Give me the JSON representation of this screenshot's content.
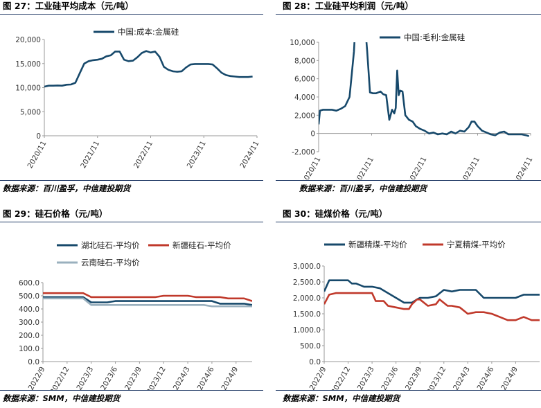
{
  "panels": [
    {
      "title": "图 27：工业硅平均成本（元/吨）",
      "source": "数据来源：百川盈孚，中信建投期货"
    },
    {
      "title": "图 28：工业硅平均利润（元/吨）",
      "source": "数据来源：百川盈孚，中信建投期货"
    },
    {
      "title": "图 29：硅石价格（元/吨）",
      "source": "数据来源：SMM，中信建投期货"
    },
    {
      "title": "图 30：硅煤价格（元/吨）",
      "source": "数据来源：SMM，中信建投期货"
    }
  ],
  "chart_data": [
    {
      "type": "line",
      "title": "图 27：工业硅平均成本（元/吨）",
      "ylim": [
        0,
        20000
      ],
      "yticks": [
        "0",
        "5,000",
        "10,000",
        "15,000",
        "20,000"
      ],
      "ytick_values": [
        0,
        5000,
        10000,
        15000,
        20000
      ],
      "xlim": [
        "2020-11",
        "2024-11"
      ],
      "xticks": [
        "2020/11",
        "2021/11",
        "2022/11",
        "2023/11",
        "2024/11"
      ],
      "grid": false,
      "legend": "top-center",
      "series": [
        {
          "name": "中国:成本:金属硅",
          "color": "#17496b",
          "points": [
            [
              "2020-11",
              10200
            ],
            [
              "2020-12",
              10400
            ],
            [
              "2021-01",
              10400
            ],
            [
              "2021-02",
              10450
            ],
            [
              "2021-03",
              10400
            ],
            [
              "2021-04",
              10600
            ],
            [
              "2021-05",
              10650
            ],
            [
              "2021-06",
              11000
            ],
            [
              "2021-07",
              13000
            ],
            [
              "2021-08",
              15000
            ],
            [
              "2021-09",
              15500
            ],
            [
              "2021-10",
              15700
            ],
            [
              "2021-11",
              15800
            ],
            [
              "2021-12",
              16000
            ],
            [
              "2022-01",
              16500
            ],
            [
              "2022-02",
              16700
            ],
            [
              "2022-03",
              17500
            ],
            [
              "2022-04",
              17500
            ],
            [
              "2022-05",
              15800
            ],
            [
              "2022-06",
              15500
            ],
            [
              "2022-07",
              15600
            ],
            [
              "2022-08",
              16300
            ],
            [
              "2022-09",
              17200
            ],
            [
              "2022-10",
              17600
            ],
            [
              "2022-11",
              17300
            ],
            [
              "2022-12",
              17500
            ],
            [
              "2023-01",
              16400
            ],
            [
              "2023-02",
              14300
            ],
            [
              "2023-03",
              13700
            ],
            [
              "2023-04",
              13400
            ],
            [
              "2023-05",
              13300
            ],
            [
              "2023-06",
              13400
            ],
            [
              "2023-07",
              14200
            ],
            [
              "2023-08",
              14800
            ],
            [
              "2023-09",
              14900
            ],
            [
              "2023-10",
              14900
            ],
            [
              "2023-11",
              14900
            ],
            [
              "2023-12",
              14900
            ],
            [
              "2024-01",
              14800
            ],
            [
              "2024-02",
              14000
            ],
            [
              "2024-03",
              13100
            ],
            [
              "2024-04",
              12600
            ],
            [
              "2024-05",
              12400
            ],
            [
              "2024-06",
              12300
            ],
            [
              "2024-07",
              12200
            ],
            [
              "2024-08",
              12200
            ],
            [
              "2024-09",
              12200
            ],
            [
              "2024-10",
              12300
            ]
          ]
        }
      ]
    },
    {
      "type": "line",
      "title": "图 28：工业硅平均利润（元/吨）",
      "ylim": [
        -2000,
        10000
      ],
      "yticks": [
        "-2,000",
        "0",
        "2,000",
        "4,000",
        "6,000",
        "8,000",
        "10,000"
      ],
      "ytick_values": [
        -2000,
        0,
        2000,
        4000,
        6000,
        8000,
        10000
      ],
      "xlim": [
        "2020-11",
        "2024-11"
      ],
      "xticks": [
        "2020/11",
        "2021/11",
        "2022/11",
        "2023/11",
        "2024/11"
      ],
      "grid": false,
      "legend": "top-center",
      "series": [
        {
          "name": "中国:毛利:金属硅",
          "color": "#17496b",
          "points": [
            [
              "2020-11-01",
              1000
            ],
            [
              "2020-11-10",
              2500
            ],
            [
              "2020-12-01",
              2600
            ],
            [
              "2021-01-01",
              2600
            ],
            [
              "2021-02-01",
              2600
            ],
            [
              "2021-03-01",
              2500
            ],
            [
              "2021-04-01",
              2700
            ],
            [
              "2021-05-01",
              3000
            ],
            [
              "2021-06-01",
              4000
            ],
            [
              "2021-07-01",
              9000
            ],
            [
              "2021-07-20",
              15000
            ],
            [
              "2021-09-01",
              15000
            ],
            [
              "2021-10-01",
              9000
            ],
            [
              "2021-10-20",
              4500
            ],
            [
              "2021-11-10",
              4400
            ],
            [
              "2021-12-01",
              4400
            ],
            [
              "2022-01-01",
              4600
            ],
            [
              "2022-01-20",
              4300
            ],
            [
              "2022-02-10",
              4200
            ],
            [
              "2022-03-01",
              1500
            ],
            [
              "2022-03-20",
              2600
            ],
            [
              "2022-04-05",
              2200
            ],
            [
              "2022-04-15",
              2800
            ],
            [
              "2022-04-25",
              6900
            ],
            [
              "2022-05-05",
              4200
            ],
            [
              "2022-05-15",
              4700
            ],
            [
              "2022-06-01",
              4600
            ],
            [
              "2022-06-20",
              2000
            ],
            [
              "2022-07-15",
              1500
            ],
            [
              "2022-08-10",
              1300
            ],
            [
              "2022-09-01",
              800
            ],
            [
              "2022-10-01",
              500
            ],
            [
              "2022-11-01",
              300
            ],
            [
              "2022-12-01",
              0
            ],
            [
              "2023-01-01",
              100
            ],
            [
              "2023-02-01",
              -100
            ],
            [
              "2023-03-01",
              0
            ],
            [
              "2023-04-01",
              -100
            ],
            [
              "2023-05-01",
              200
            ],
            [
              "2023-06-01",
              0
            ],
            [
              "2023-07-01",
              300
            ],
            [
              "2023-08-01",
              200
            ],
            [
              "2023-09-01",
              700
            ],
            [
              "2023-09-20",
              1300
            ],
            [
              "2023-10-10",
              1300
            ],
            [
              "2023-11-01",
              800
            ],
            [
              "2023-12-01",
              300
            ],
            [
              "2024-01-01",
              100
            ],
            [
              "2024-02-01",
              -100
            ],
            [
              "2024-03-01",
              -200
            ],
            [
              "2024-04-01",
              100
            ],
            [
              "2024-05-01",
              200
            ],
            [
              "2024-06-01",
              -100
            ],
            [
              "2024-07-01",
              -100
            ],
            [
              "2024-08-01",
              -100
            ],
            [
              "2024-09-01",
              -100
            ],
            [
              "2024-10-01",
              -200
            ],
            [
              "2024-10-20",
              -300
            ]
          ]
        }
      ]
    },
    {
      "type": "line",
      "title": "图 29：硅石价格（元/吨）",
      "ylim": [
        0,
        600
      ],
      "yticks": [
        "0.0",
        "100.0",
        "200.0",
        "300.0",
        "400.0",
        "500.0",
        "600.0"
      ],
      "ytick_values": [
        0,
        100,
        200,
        300,
        400,
        500,
        600
      ],
      "xlim": [
        "2022-09",
        "2024-11"
      ],
      "xticks": [
        "2022/9",
        "2022/12",
        "2023/3",
        "2023/6",
        "2023/9",
        "2023/12",
        "2024/3",
        "2024/6",
        "2024/9"
      ],
      "grid": false,
      "legend": "top-left",
      "series": [
        {
          "name": "湖北硅石-平均价",
          "color": "#17496b",
          "points": [
            [
              "2022-09",
              490
            ],
            [
              "2023-02",
              490
            ],
            [
              "2023-03",
              450
            ],
            [
              "2023-05",
              450
            ],
            [
              "2023-06",
              460
            ],
            [
              "2024-06",
              460
            ],
            [
              "2024-07",
              440
            ],
            [
              "2024-10",
              440
            ],
            [
              "2024-11",
              430
            ]
          ]
        },
        {
          "name": "新疆硅石-平均价",
          "color": "#c0392b",
          "points": [
            [
              "2022-09",
              520
            ],
            [
              "2023-02",
              520
            ],
            [
              "2023-03",
              490
            ],
            [
              "2023-11",
              490
            ],
            [
              "2023-12",
              500
            ],
            [
              "2024-03",
              500
            ],
            [
              "2024-04",
              490
            ],
            [
              "2024-07",
              490
            ],
            [
              "2024-08",
              480
            ],
            [
              "2024-10",
              480
            ],
            [
              "2024-11",
              460
            ]
          ]
        },
        {
          "name": "云南硅石-平均价",
          "color": "#9ab0be",
          "points": [
            [
              "2022-09",
              480
            ],
            [
              "2023-02",
              480
            ],
            [
              "2023-03",
              430
            ],
            [
              "2024-05",
              430
            ],
            [
              "2024-06",
              420
            ],
            [
              "2024-11",
              420
            ]
          ]
        }
      ]
    },
    {
      "type": "line",
      "title": "图 30：硅煤价格（元/吨）",
      "ylim": [
        0,
        3000
      ],
      "yticks": [
        "0.0",
        "500.0",
        "1,000.0",
        "1,500.0",
        "2,000.0",
        "2,500.0",
        "3,000.0"
      ],
      "ytick_values": [
        0,
        500,
        1000,
        1500,
        2000,
        2500,
        3000
      ],
      "xlim": [
        "2022-09",
        "2024-12"
      ],
      "xticks": [
        "2022/9",
        "2022/12",
        "2023/3",
        "2023/6",
        "2023/9",
        "2023/12",
        "2024/3",
        "2024/6",
        "2024/9"
      ],
      "grid": false,
      "legend": "top-left",
      "series": [
        {
          "name": "新疆精煤-平均价",
          "color": "#17496b",
          "points": [
            [
              "2022-09",
              2200
            ],
            [
              "2022-09-20",
              2550
            ],
            [
              "2022-10-15",
              2550
            ],
            [
              "2022-11",
              2550
            ],
            [
              "2022-12-01",
              2550
            ],
            [
              "2022-12-15",
              2450
            ],
            [
              "2023-01",
              2450
            ],
            [
              "2023-02",
              2350
            ],
            [
              "2023-03",
              2350
            ],
            [
              "2023-04",
              2300
            ],
            [
              "2023-05",
              2150
            ],
            [
              "2023-06",
              2000
            ],
            [
              "2023-07",
              1850
            ],
            [
              "2023-08",
              1850
            ],
            [
              "2023-08-20",
              1950
            ],
            [
              "2023-09",
              2000
            ],
            [
              "2023-10",
              2000
            ],
            [
              "2023-11",
              2050
            ],
            [
              "2023-12",
              2250
            ],
            [
              "2024-01",
              2200
            ],
            [
              "2024-02",
              2250
            ],
            [
              "2024-03",
              2250
            ],
            [
              "2024-04",
              2250
            ],
            [
              "2024-05",
              2000
            ],
            [
              "2024-06",
              2000
            ],
            [
              "2024-07",
              2000
            ],
            [
              "2024-08",
              2000
            ],
            [
              "2024-09",
              2000
            ],
            [
              "2024-10",
              2100
            ],
            [
              "2024-11",
              2100
            ],
            [
              "2024-12",
              2100
            ]
          ]
        },
        {
          "name": "宁夏精煤-平均价",
          "color": "#c0392b",
          "points": [
            [
              "2022-09",
              1800
            ],
            [
              "2022-09-20",
              2100
            ],
            [
              "2022-10-15",
              2150
            ],
            [
              "2023-03",
              2150
            ],
            [
              "2023-03-15",
              1900
            ],
            [
              "2023-04-15",
              1900
            ],
            [
              "2023-05",
              1750
            ],
            [
              "2023-06",
              1700
            ],
            [
              "2023-07",
              1650
            ],
            [
              "2023-07-20",
              1650
            ],
            [
              "2023-08",
              1800
            ],
            [
              "2023-08-20",
              1950
            ],
            [
              "2023-09",
              1950
            ],
            [
              "2023-10",
              1750
            ],
            [
              "2023-11",
              1800
            ],
            [
              "2023-11-15",
              1950
            ],
            [
              "2023-12-15",
              1750
            ],
            [
              "2024-01",
              1750
            ],
            [
              "2024-02",
              1700
            ],
            [
              "2024-03",
              1500
            ],
            [
              "2024-04",
              1550
            ],
            [
              "2024-05",
              1550
            ],
            [
              "2024-06",
              1500
            ],
            [
              "2024-07",
              1400
            ],
            [
              "2024-08",
              1300
            ],
            [
              "2024-09",
              1300
            ],
            [
              "2024-10",
              1400
            ],
            [
              "2024-11",
              1300
            ],
            [
              "2024-12",
              1300
            ]
          ]
        }
      ]
    }
  ]
}
